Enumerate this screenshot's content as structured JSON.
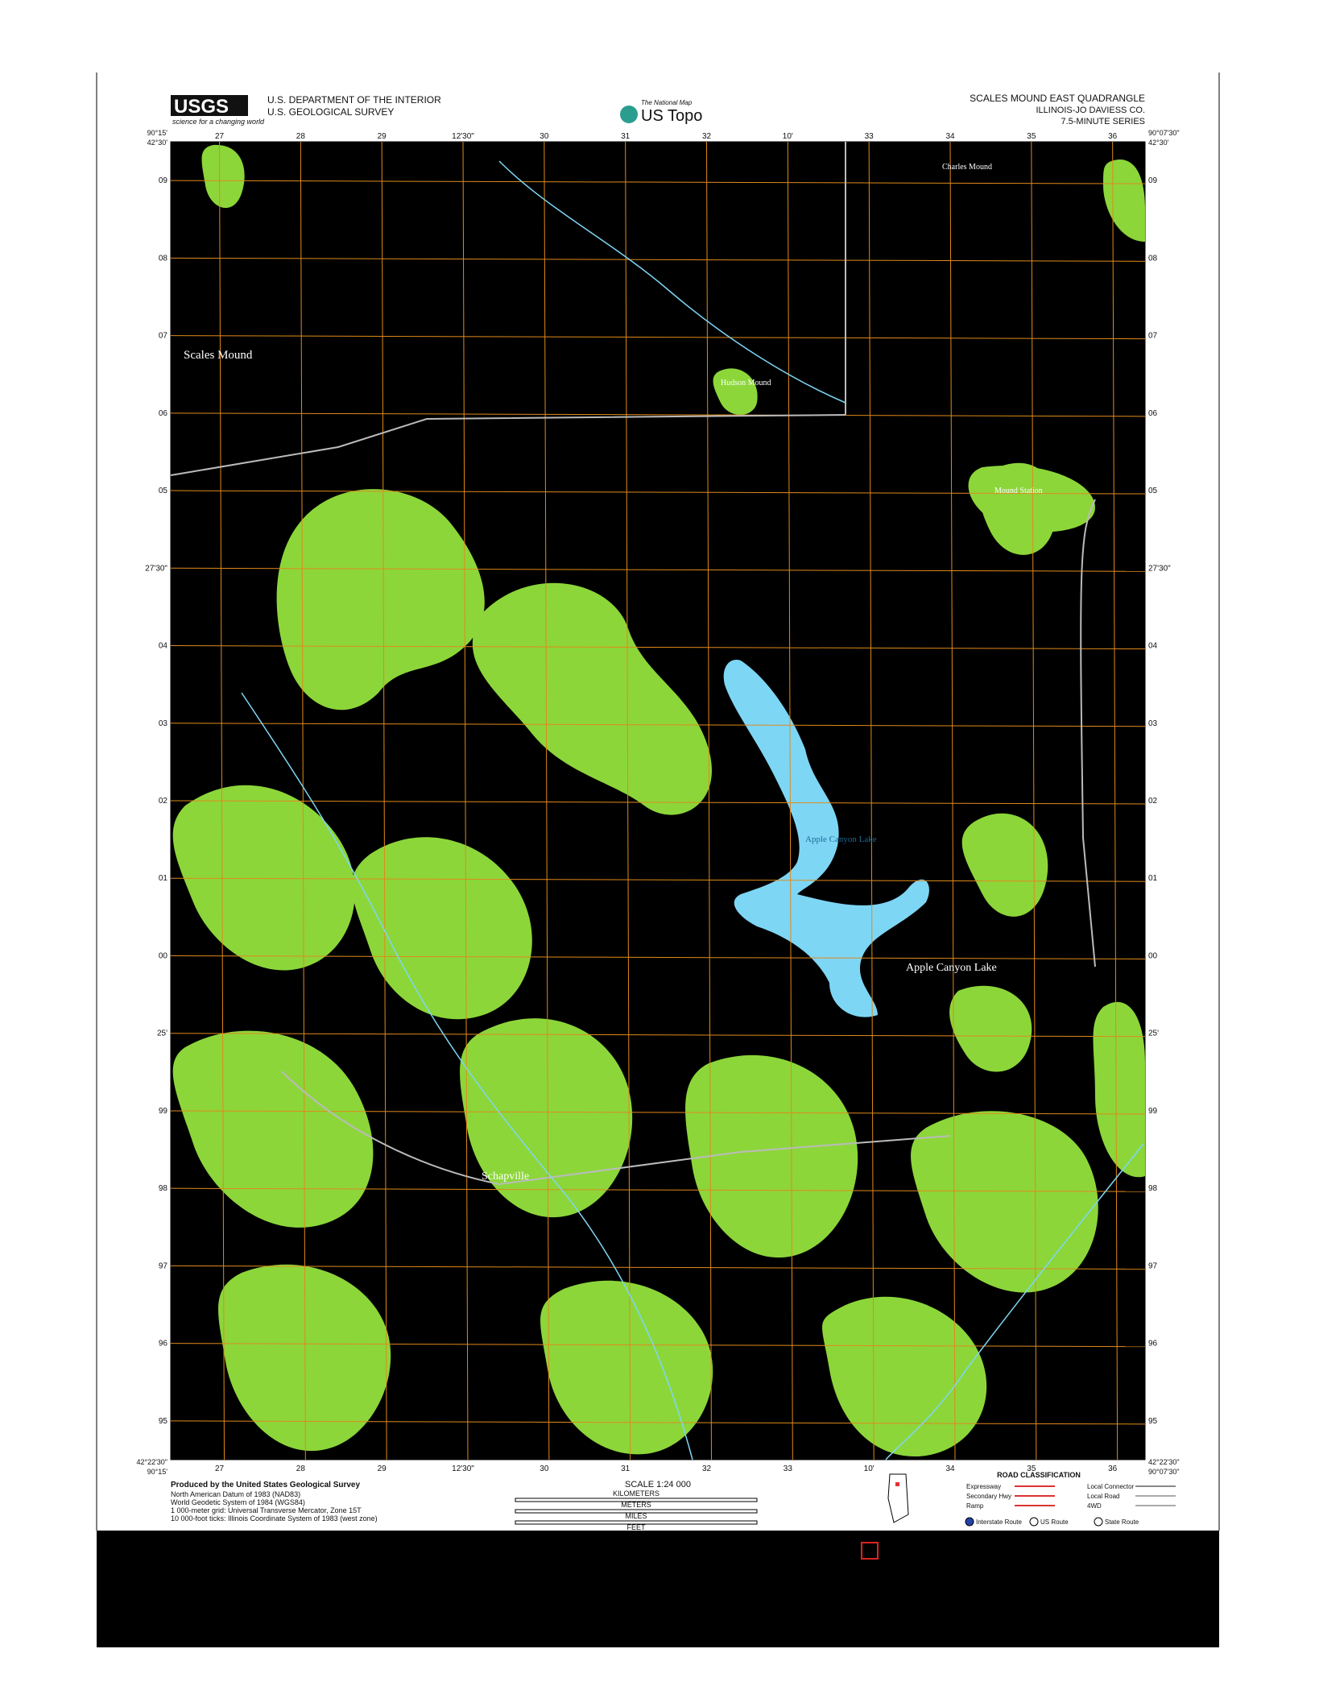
{
  "header": {
    "logo": "USGS",
    "logo_tagline": "science for a changing world",
    "agency_line1": "U.S. DEPARTMENT OF THE INTERIOR",
    "agency_line2": "U.S. GEOLOGICAL SURVEY",
    "product_top": "The National Map",
    "product": "US Topo",
    "quadrangle": "SCALES MOUND EAST QUADRANGLE",
    "state_county": "ILLINOIS-JO DAVIESS CO.",
    "series": "7.5-MINUTE SERIES"
  },
  "corners": {
    "top_left_lon": "90°15'",
    "top_left_lat": "42°30'",
    "top_right_lon": "90°07'30\"",
    "top_right_lat": "42°30'",
    "bottom_left_lon": "90°15'",
    "bottom_left_lat": "42°22'30\"",
    "bottom_right_lon": "90°07'30\"",
    "bottom_right_lat": "42°22'30\""
  },
  "top_ticks": [
    "27",
    "28",
    "29",
    "12'30\"",
    "30",
    "31",
    "32",
    "10'",
    "33",
    "34",
    "35",
    "36"
  ],
  "bottom_ticks": [
    "27",
    "28",
    "29",
    "12'30\"",
    "30",
    "31",
    "32",
    "33",
    "10'",
    "34",
    "35",
    "36"
  ],
  "side_ticks": [
    "09",
    "08",
    "07",
    "06",
    "05",
    "27'30\"",
    "04",
    "03",
    "02",
    "01",
    "00",
    "25'",
    "99",
    "98",
    "97",
    "96",
    "95"
  ],
  "place_names": [
    "Scales Mound",
    "Hudson Mound",
    "Charles Mound",
    "Mound Station",
    "Apple Canyon Lake",
    "Apple Canyon Lake",
    "Schapville"
  ],
  "footer": {
    "produced_by": "Produced by the United States Geological Survey",
    "datum_notes": [
      "North American Datum of 1983 (NAD83)",
      "World Geodetic System of 1984 (WGS84)",
      "1 000-meter grid: Universal Transverse Mercator, Zone 15T",
      "10 000-foot ticks: Illinois Coordinate System of 1983 (west zone)"
    ],
    "scale": "SCALE 1:24 000",
    "scale_units": [
      "KILOMETERS",
      "METERS",
      "MILES",
      "FEET"
    ],
    "road_title": "ROAD CLASSIFICATION",
    "roads": [
      "Expressway",
      "Secondary Hwy",
      "Ramp",
      "Local Connector",
      "Local Road",
      "4WD"
    ],
    "routes": [
      "Interstate Route",
      "US Route",
      "State Route"
    ]
  }
}
